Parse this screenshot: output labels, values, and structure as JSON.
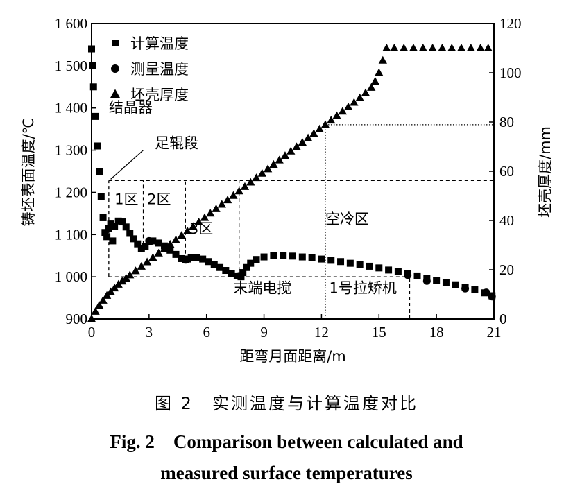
{
  "caption": {
    "cn": "图 2　实测温度与计算温度对比",
    "en_line1": "Fig. 2　Comparison between calculated and",
    "en_line2": "measured surface temperatures"
  },
  "chart_data": {
    "type": "scatter",
    "xlabel": "距弯月面距离/m",
    "ylabel_left": "铸坯表面温度/℃",
    "ylabel_right": "坯壳厚度/mm",
    "xlim": [
      0,
      21
    ],
    "ylim_left": [
      900,
      1600
    ],
    "ylim_right": [
      0,
      120
    ],
    "x_ticks": [
      "0",
      "3",
      "6",
      "9",
      "12",
      "15",
      "18",
      "21"
    ],
    "y_left_ticks": [
      "900",
      "1 000",
      "1 100",
      "1 200",
      "1 300",
      "1 400",
      "1 500",
      "1 600"
    ],
    "y_right_ticks": [
      "0",
      "20",
      "40",
      "60",
      "80",
      "100",
      "120"
    ],
    "legend": {
      "position": "top-left",
      "items": [
        {
          "marker": "square",
          "label": "计算温度"
        },
        {
          "marker": "circle",
          "label": "测量温度"
        },
        {
          "marker": "triangle",
          "label": "坯壳厚度"
        }
      ]
    },
    "series": [
      {
        "name": "计算温度",
        "axis": "left",
        "marker": "square",
        "points": [
          [
            0.0,
            1540
          ],
          [
            0.05,
            1500
          ],
          [
            0.1,
            1450
          ],
          [
            0.2,
            1380
          ],
          [
            0.3,
            1310
          ],
          [
            0.4,
            1250
          ],
          [
            0.5,
            1190
          ],
          [
            0.6,
            1140
          ],
          [
            0.7,
            1105
          ],
          [
            0.8,
            1095
          ],
          [
            0.9,
            1115
          ],
          [
            1.0,
            1125
          ],
          [
            1.1,
            1085
          ],
          [
            1.2,
            1120
          ],
          [
            1.4,
            1132
          ],
          [
            1.6,
            1130
          ],
          [
            1.8,
            1118
          ],
          [
            2.0,
            1103
          ],
          [
            2.2,
            1090
          ],
          [
            2.4,
            1078
          ],
          [
            2.6,
            1067
          ],
          [
            2.8,
            1072
          ],
          [
            3.0,
            1083
          ],
          [
            3.2,
            1085
          ],
          [
            3.5,
            1080
          ],
          [
            3.8,
            1073
          ],
          [
            4.1,
            1063
          ],
          [
            4.4,
            1053
          ],
          [
            4.7,
            1043
          ],
          [
            4.9,
            1040
          ],
          [
            5.0,
            1042
          ],
          [
            5.2,
            1046
          ],
          [
            5.5,
            1046
          ],
          [
            5.8,
            1042
          ],
          [
            6.1,
            1036
          ],
          [
            6.4,
            1029
          ],
          [
            6.7,
            1022
          ],
          [
            7.0,
            1015
          ],
          [
            7.3,
            1008
          ],
          [
            7.6,
            1002
          ],
          [
            7.8,
            1000
          ],
          [
            7.9,
            1010
          ],
          [
            8.1,
            1022
          ],
          [
            8.3,
            1032
          ],
          [
            8.6,
            1041
          ],
          [
            9.0,
            1047
          ],
          [
            9.5,
            1050
          ],
          [
            10.0,
            1050
          ],
          [
            10.5,
            1049
          ],
          [
            11.0,
            1047
          ],
          [
            11.5,
            1045
          ],
          [
            12.0,
            1042
          ],
          [
            12.5,
            1039
          ],
          [
            13.0,
            1036
          ],
          [
            13.5,
            1032
          ],
          [
            14.0,
            1029
          ],
          [
            14.5,
            1025
          ],
          [
            15.0,
            1021
          ],
          [
            15.5,
            1016
          ],
          [
            16.0,
            1012
          ],
          [
            16.5,
            1007
          ],
          [
            17.0,
            1002
          ],
          [
            17.5,
            996
          ],
          [
            18.0,
            991
          ],
          [
            18.5,
            986
          ],
          [
            19.0,
            981
          ],
          [
            19.5,
            975
          ],
          [
            20.0,
            969
          ],
          [
            20.5,
            962
          ],
          [
            20.9,
            955
          ]
        ]
      },
      {
        "name": "测量温度",
        "axis": "left",
        "marker": "circle",
        "points": [
          [
            3.0,
            1085
          ],
          [
            4.9,
            1040
          ],
          [
            7.7,
            1002
          ],
          [
            16.5,
            1004
          ],
          [
            17.5,
            990
          ],
          [
            19.5,
            972
          ],
          [
            20.6,
            963
          ],
          [
            20.9,
            953
          ]
        ]
      },
      {
        "name": "坯壳厚度",
        "axis": "right",
        "marker": "triangle",
        "points": [
          [
            0.0,
            0
          ],
          [
            0.2,
            3
          ],
          [
            0.4,
            5.5
          ],
          [
            0.6,
            7.5
          ],
          [
            0.8,
            9.5
          ],
          [
            1.0,
            11
          ],
          [
            1.2,
            12.5
          ],
          [
            1.4,
            14
          ],
          [
            1.6,
            15.3
          ],
          [
            1.8,
            16.5
          ],
          [
            2.0,
            17.8
          ],
          [
            2.3,
            19.5
          ],
          [
            2.6,
            21.3
          ],
          [
            2.9,
            23.1
          ],
          [
            3.2,
            24.9
          ],
          [
            3.5,
            26.7
          ],
          [
            3.8,
            28.5
          ],
          [
            4.1,
            30.3
          ],
          [
            4.4,
            32.1
          ],
          [
            4.7,
            33.9
          ],
          [
            5.0,
            35.7
          ],
          [
            5.3,
            37.5
          ],
          [
            5.6,
            39.3
          ],
          [
            5.9,
            41.1
          ],
          [
            6.2,
            42.9
          ],
          [
            6.5,
            44.7
          ],
          [
            6.8,
            46.5
          ],
          [
            7.1,
            48.3
          ],
          [
            7.4,
            50.1
          ],
          [
            7.7,
            51.9
          ],
          [
            8.0,
            53.7
          ],
          [
            8.3,
            55.5
          ],
          [
            8.6,
            57.3
          ],
          [
            8.9,
            59.1
          ],
          [
            9.2,
            60.9
          ],
          [
            9.5,
            62.7
          ],
          [
            9.8,
            64.5
          ],
          [
            10.1,
            66.3
          ],
          [
            10.4,
            68.1
          ],
          [
            10.7,
            69.9
          ],
          [
            11.0,
            71.7
          ],
          [
            11.3,
            73.5
          ],
          [
            11.6,
            75.3
          ],
          [
            11.9,
            77.1
          ],
          [
            12.2,
            78.9
          ],
          [
            12.5,
            80.7
          ],
          [
            12.8,
            82.5
          ],
          [
            13.1,
            84.3
          ],
          [
            13.4,
            86.1
          ],
          [
            13.7,
            87.9
          ],
          [
            14.0,
            89.8
          ],
          [
            14.3,
            91.8
          ],
          [
            14.6,
            94
          ],
          [
            14.8,
            96.5
          ],
          [
            15.0,
            100
          ],
          [
            15.2,
            105
          ],
          [
            15.4,
            110
          ],
          [
            15.8,
            110
          ],
          [
            16.3,
            110
          ],
          [
            16.8,
            110
          ],
          [
            17.3,
            110
          ],
          [
            17.8,
            110
          ],
          [
            18.3,
            110
          ],
          [
            18.8,
            110
          ],
          [
            19.3,
            110
          ],
          [
            19.8,
            110
          ],
          [
            20.3,
            110
          ],
          [
            20.7,
            110
          ]
        ]
      }
    ],
    "annotations": [
      {
        "text": "结晶器",
        "x": 0.9,
        "y": 1390
      },
      {
        "text": "足辊段",
        "x": 3.3,
        "y": 1305
      },
      {
        "text": "1区",
        "x": 1.2,
        "y": 1172
      },
      {
        "text": "2区",
        "x": 2.9,
        "y": 1172
      },
      {
        "text": "3区",
        "x": 5.1,
        "y": 1102
      },
      {
        "text": "空冷区",
        "x": 12.2,
        "y": 1125
      },
      {
        "text": "末端电搅",
        "x": 7.4,
        "y": 962
      },
      {
        "text": "1号拉矫机",
        "x": 12.4,
        "y": 962
      }
    ],
    "reference_lines": [
      {
        "orientation": "horizontal",
        "axis": "left",
        "value": 1228,
        "x_from": 0.9,
        "x_to": 21,
        "style": "dashed"
      },
      {
        "orientation": "horizontal",
        "axis": "left",
        "value": 1000,
        "x_from": 0.9,
        "x_to": 16.6,
        "style": "dashed"
      },
      {
        "orientation": "horizontal",
        "axis": "right",
        "value": 78.9,
        "x_from": 12.2,
        "x_to": 21,
        "style": "dotted"
      },
      {
        "orientation": "vertical",
        "value": 0.9,
        "y_from": 1000,
        "y_to": 1228,
        "style": "dashed"
      },
      {
        "orientation": "vertical",
        "value": 2.7,
        "y_from": 1062,
        "y_to": 1228,
        "style": "dashed"
      },
      {
        "orientation": "vertical",
        "value": 4.9,
        "y_from": 1040,
        "y_to": 1228,
        "style": "dashed"
      },
      {
        "orientation": "vertical",
        "value": 7.7,
        "y_from": 1000,
        "y_to": 1228,
        "style": "dashed"
      },
      {
        "orientation": "vertical",
        "value": 12.2,
        "y_from": 900,
        "y_to": 1362,
        "style": "dotted"
      },
      {
        "orientation": "vertical",
        "value": 16.6,
        "y_from": 900,
        "y_to": 1000,
        "style": "dashed"
      }
    ],
    "grid": false,
    "colors": {
      "ink": "#000000",
      "background": "#ffffff"
    }
  }
}
